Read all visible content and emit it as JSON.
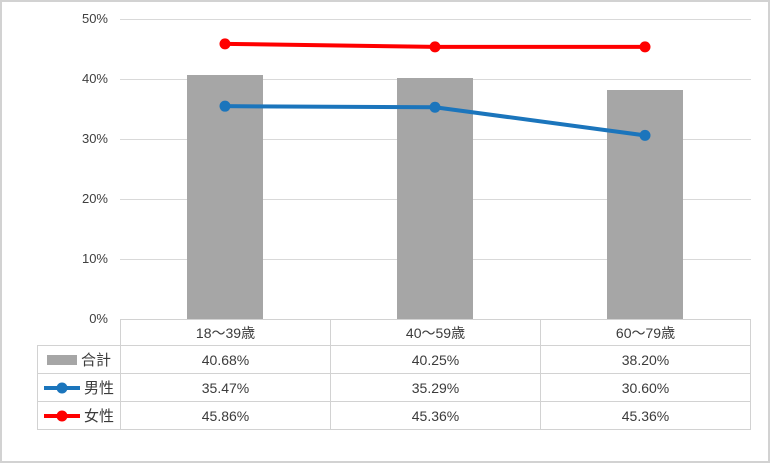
{
  "chart_data": {
    "type": "combo",
    "categories": [
      "18〜39歳",
      "40〜59歳",
      "60〜79歳"
    ],
    "series": [
      {
        "key": "total",
        "name": "合計",
        "type": "bar",
        "color": "#a6a6a6",
        "values": [
          40.68,
          40.25,
          38.2
        ]
      },
      {
        "key": "male",
        "name": "男性",
        "type": "line",
        "color": "#1b75bc",
        "values": [
          35.47,
          35.29,
          30.6
        ]
      },
      {
        "key": "female",
        "name": "女性",
        "type": "line",
        "color": "#ff0000",
        "values": [
          45.86,
          45.36,
          45.36
        ]
      }
    ],
    "title": "",
    "xlabel": "",
    "ylabel": "",
    "ylim": [
      0,
      50
    ],
    "ytick_step": 10,
    "ytick_labels": [
      "0%",
      "10%",
      "20%",
      "30%",
      "40%",
      "50%"
    ],
    "grid": true,
    "legend_position": "table-left"
  },
  "table": {
    "headers": [
      "18〜39歳",
      "40〜59歳",
      "60〜79歳"
    ],
    "rows": [
      {
        "label": "合計",
        "values": [
          "40.68%",
          "40.25%",
          "38.20%"
        ]
      },
      {
        "label": "男性",
        "values": [
          "35.47%",
          "35.29%",
          "30.60%"
        ]
      },
      {
        "label": "女性",
        "values": [
          "45.86%",
          "45.36%",
          "45.36%"
        ]
      }
    ]
  }
}
